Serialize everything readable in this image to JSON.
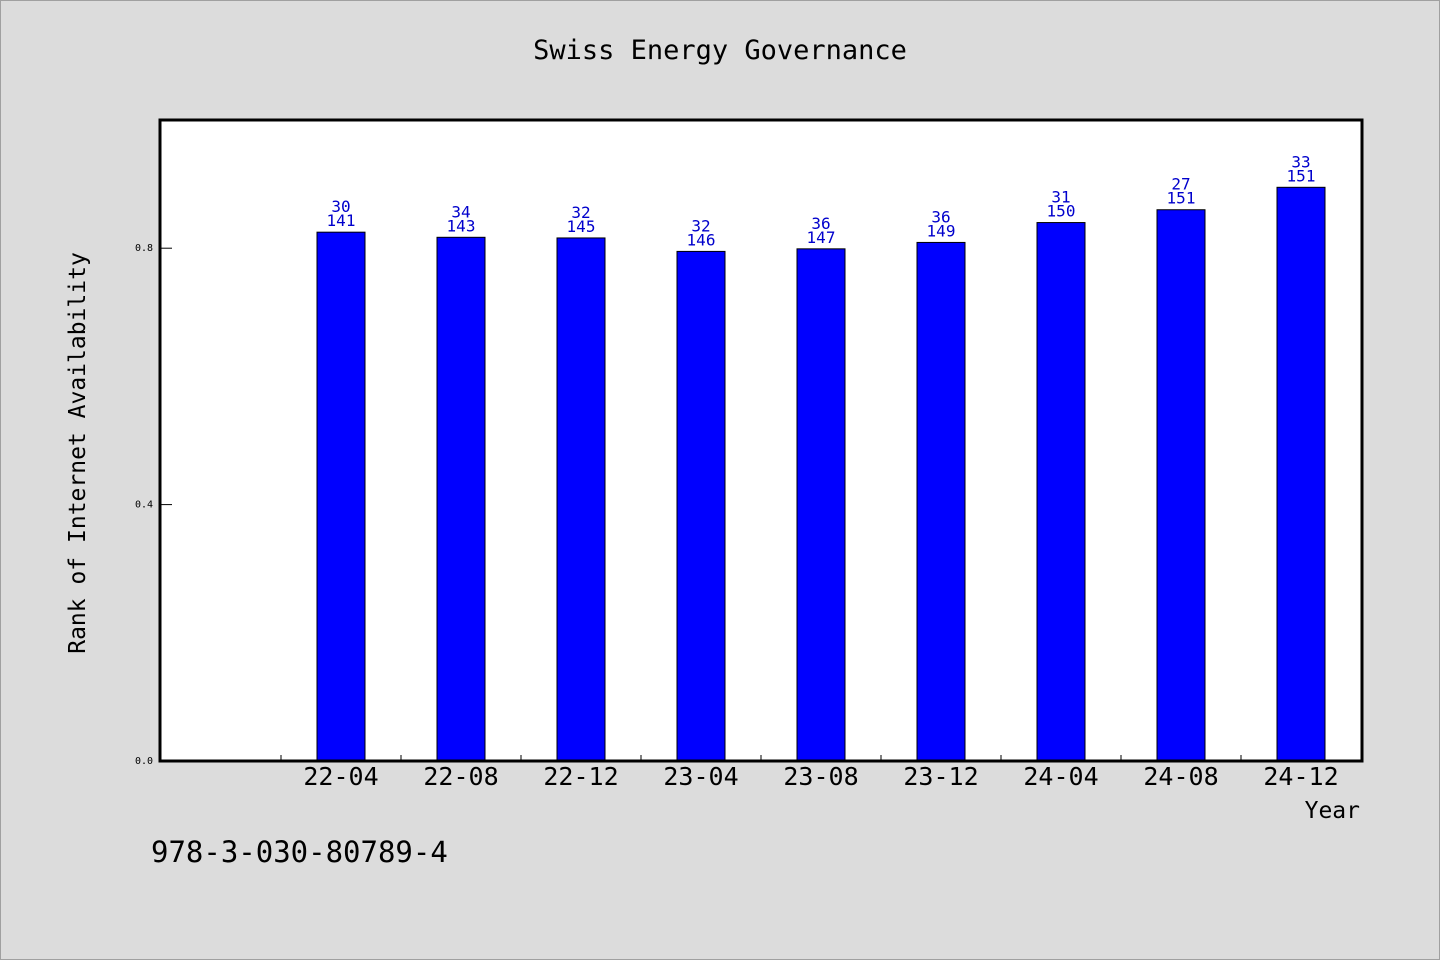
{
  "chart_data": {
    "type": "bar",
    "title": "Swiss Energy Governance",
    "xlabel": "Year",
    "ylabel": "Rank of Internet Availability",
    "categories": [
      "22-04",
      "22-08",
      "22-12",
      "23-04",
      "23-08",
      "23-12",
      "24-04",
      "24-08",
      "24-12"
    ],
    "series": [
      {
        "values": [
          0.825,
          0.817,
          0.816,
          0.795,
          0.799,
          0.809,
          0.84,
          0.86,
          0.895
        ]
      }
    ],
    "data_labels": {
      "upper": [
        "30",
        "34",
        "32",
        "32",
        "36",
        "36",
        "31",
        "27",
        "33"
      ],
      "lower": [
        "141",
        "143",
        "145",
        "146",
        "147",
        "149",
        "150",
        "151",
        "151"
      ]
    },
    "yticks": [
      "0.0",
      "0.4",
      "0.8"
    ],
    "ylim": [
      0,
      1.0
    ],
    "grid": false,
    "legend": "none",
    "colors": {
      "bar": "#0000ff",
      "label": "#0000cc",
      "frame": "#000000",
      "plot_bg": "#ffffff",
      "page_bg": "#dcdcdc"
    }
  },
  "footer": {
    "isbn": "978-3-030-80789-4"
  }
}
